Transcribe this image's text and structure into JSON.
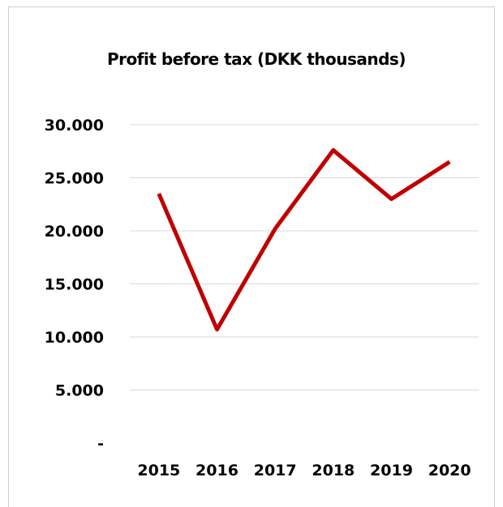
{
  "chart_data": {
    "type": "line",
    "title": "Profit before tax (DKK thousands)",
    "xlabel": "",
    "ylabel": "",
    "categories": [
      "2015",
      "2016",
      "2017",
      "2018",
      "2019",
      "2020"
    ],
    "series": [
      {
        "values": [
          23500,
          10700,
          20200,
          27600,
          23000,
          26500
        ],
        "color": "#c00000"
      }
    ],
    "ylim": [
      0,
      30000
    ],
    "yticks": [
      0,
      5000,
      10000,
      15000,
      20000,
      25000,
      30000
    ],
    "ytick_labels": [
      "-",
      "5.000",
      "10.000",
      "15.000",
      "20.000",
      "25.000",
      "30.000"
    ],
    "grid": true,
    "legend": "none"
  }
}
